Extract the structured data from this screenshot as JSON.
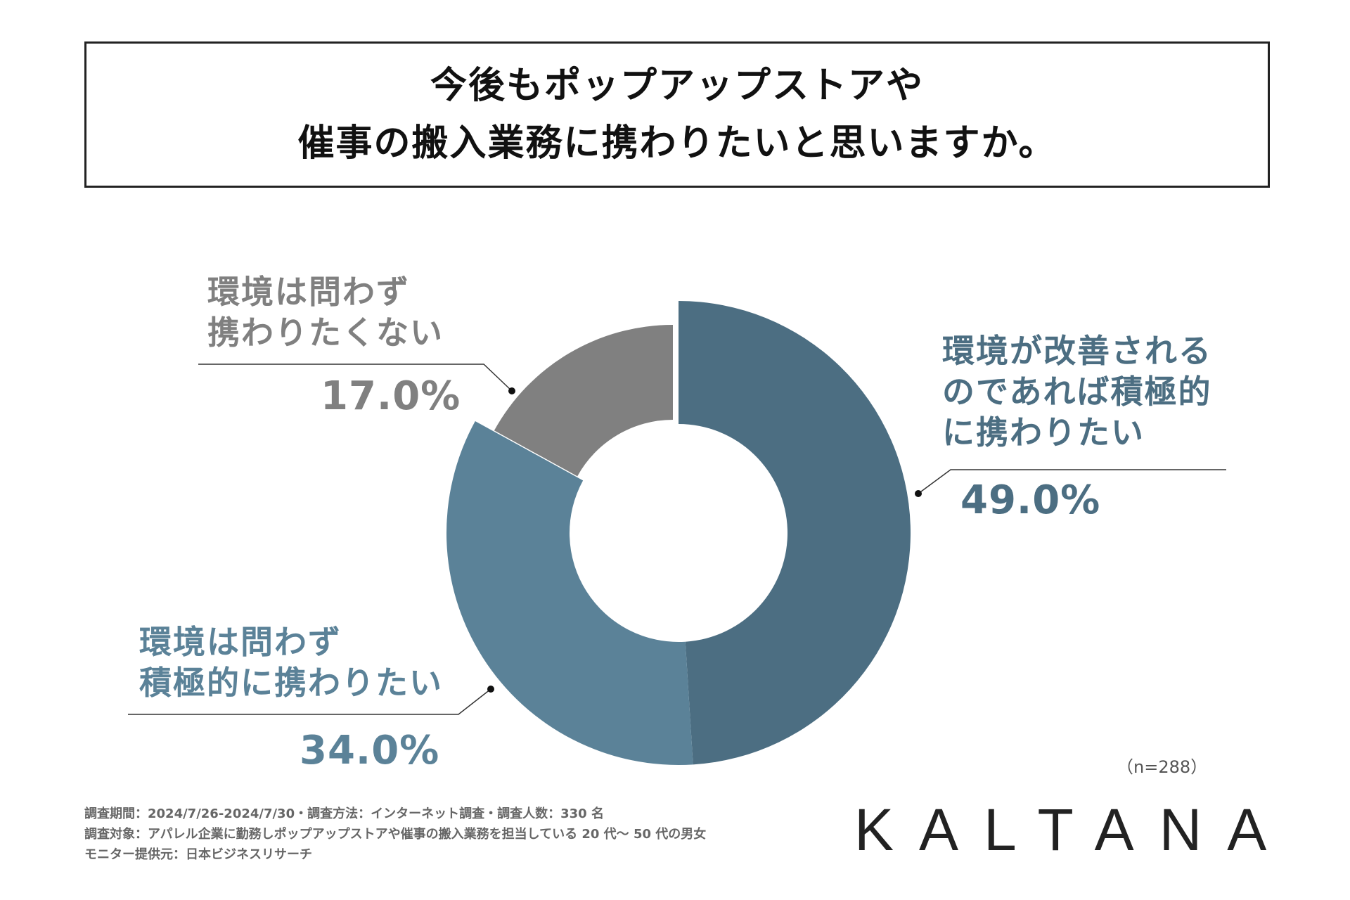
{
  "title": {
    "line1": "今後もポップアップストアや",
    "line2": "催事の搬入業務に携わりたいと思いますか。"
  },
  "chart_data": {
    "type": "pie",
    "variant": "donut",
    "slices": [
      {
        "label_line1": "環境が改善される",
        "label_line2": "のであれば積極的",
        "label_line3": "に携わりたい",
        "value": 49.0,
        "value_label": "49.0%",
        "color": "#4c6e82"
      },
      {
        "label_line1": "環境は問わず",
        "label_line2": "積極的に携わりたい",
        "value": 34.0,
        "value_label": "34.0%",
        "color": "#5b8298"
      },
      {
        "label_line1": "環境は問わず",
        "label_line2": "携わりたくない",
        "value": 17.0,
        "value_label": "17.0%",
        "color": "#808080"
      }
    ],
    "start": "top",
    "direction": "clockwise",
    "exploded_slice": "環境は問わず 携わりたくない",
    "sample_note": "（n=288）"
  },
  "footer": {
    "line1": "調査期間：2024/7/26-2024/7/30・調査方法：インターネット調査・調査人数：330 名",
    "line2": "調査対象：アパレル企業に勤務しポップアップストアや催事の搬入業務を担当している 20 代〜 50 代の男女",
    "line3": "モニター提供元：日本ビジネスリサーチ"
  },
  "brand": "KALTANA"
}
